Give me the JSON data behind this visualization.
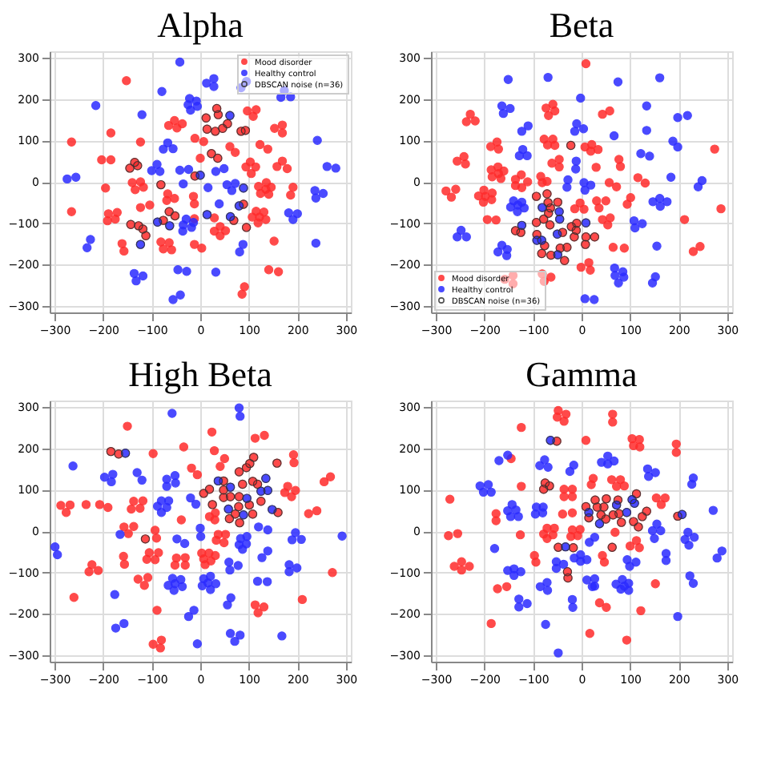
{
  "chart_data": [
    {
      "type": "scatter",
      "title": "Alpha",
      "xlim": [
        -310,
        310
      ],
      "ylim": [
        -315,
        315
      ],
      "xticks": [
        -300,
        -200,
        -100,
        0,
        100,
        200,
        300
      ],
      "yticks": [
        -300,
        -200,
        -100,
        0,
        100,
        200,
        300
      ],
      "grid": true,
      "legend": "top right",
      "marker": "circle",
      "series": [
        {
          "name": "Mood disorder",
          "color": "#ff2b2b",
          "x": [
            -152,
            -265,
            -184,
            -203,
            -184,
            -195,
            -265,
            -189,
            -191,
            -171,
            -175,
            -161,
            -157,
            -123,
            -140,
            -134,
            -123,
            -117,
            -123,
            -104,
            -135,
            -129,
            -145,
            -81,
            -67,
            -69,
            -53,
            -64,
            -52,
            -76,
            -143,
            -127,
            -118,
            -112,
            -81,
            -76,
            -64,
            -59,
            -65,
            -53,
            -48,
            -37,
            -11,
            0,
            -11,
            -14,
            -12,
            -12,
            -12,
            3,
            12,
            14,
            7,
            23,
            36,
            34,
            37,
            46,
            56,
            31,
            61,
            72,
            84,
            93,
            97,
            109,
            115,
            123,
            139,
            94,
            103,
            114,
            105,
            120,
            124,
            136,
            135,
            146,
            141,
            89,
            69,
            95,
            107,
            122,
            115,
            131,
            135,
            119,
            29,
            29,
            41,
            41,
            52,
            152,
            161,
            141,
            153,
            169,
            169,
            158,
            169,
            179,
            191,
            186,
            91,
            86
          ],
          "values": [
            244,
            96,
            118,
            53,
            53,
            -15,
            -72,
            -77,
            -94,
            -74,
            -90,
            -149,
            -167,
            96,
            -2,
            -19,
            0,
            -13,
            -62,
            -56,
            47,
            39,
            33,
            -7,
            -29,
            -45,
            -40,
            -72,
            -82,
            -93,
            -103,
            -106,
            -114,
            -130,
            -145,
            -162,
            -147,
            -164,
            136,
            148,
            130,
            140,
            105,
            57,
            14,
            -35,
            -53,
            -89,
            -151,
            -160,
            154,
            127,
            97,
            68,
            57,
            177,
            162,
            129,
            140,
            122,
            85,
            71,
            122,
            124,
            171,
            158,
            174,
            90,
            79,
            36,
            48,
            36,
            20,
            -11,
            -28,
            -2,
            -18,
            -13,
            -30,
            -54,
            -93,
            -110,
            -85,
            -85,
            -71,
            -73,
            -91,
            -99,
            -87,
            -119,
            -108,
            -130,
            -118,
            -143,
            -217,
            -212,
            129,
            137,
            118,
            37,
            50,
            32,
            -13,
            -32,
            -253,
            -271
          ]
        },
        {
          "name": "Healthy control",
          "color": "#2b2bff",
          "x": [
            -274,
            -256,
            -215,
            -233,
            -226,
            -120,
            -79,
            -42,
            -136,
            -132,
            -118,
            -88,
            -63,
            -123,
            -89,
            -83,
            -100,
            -76,
            -67,
            -56,
            -42,
            -35,
            -24,
            -29,
            -35,
            -36,
            -18,
            -14,
            -25,
            -22,
            -20,
            -8,
            -6,
            0,
            16,
            14,
            -46,
            -28,
            -56,
            -41,
            32,
            13,
            28,
            28,
            32,
            49,
            55,
            65,
            72,
            39,
            61,
            89,
            80,
            62,
            84,
            95,
            88,
            81,
            166,
            173,
            186,
            241,
            261,
            279,
            236,
            238,
            253,
            182,
            200,
            191,
            238
          ],
          "values": [
            7,
            11,
            184,
            -159,
            -139,
            162,
            218,
            289,
            -221,
            -239,
            -227,
            -97,
            -106,
            -151,
            42,
            25,
            27,
            79,
            94,
            80,
            28,
            -5,
            30,
            -90,
            -104,
            -119,
            -110,
            -98,
            186,
            201,
            173,
            195,
            182,
            16,
            -14,
            -79,
            -212,
            -216,
            -284,
            -273,
            -218,
            238,
            249,
            230,
            25,
            32,
            -7,
            -21,
            -4,
            -53,
            160,
            -15,
            -58,
            -84,
            227,
            242,
            -151,
            -169,
            204,
            220,
            205,
            100,
            37,
            33,
            -21,
            -39,
            -28,
            -75,
            -77,
            -91,
            -148
          ]
        },
        {
          "name": "DBSCAN noise (n=36)",
          "color": "#333333",
          "x": [
            -135,
            -129,
            -145,
            -81,
            -64,
            -52,
            -76,
            -143,
            -127,
            -118,
            -112,
            -11,
            12,
            14,
            23,
            36,
            34,
            37,
            46,
            56,
            31,
            84,
            93,
            89,
            69,
            95,
            -88,
            -63,
            -123,
            0,
            14,
            61,
            89,
            80,
            62
          ],
          "values": [
            47,
            39,
            33,
            -7,
            -72,
            -82,
            -93,
            -103,
            -106,
            -114,
            -130,
            14,
            154,
            127,
            68,
            57,
            177,
            162,
            129,
            140,
            122,
            122,
            124,
            -54,
            -93,
            -110,
            -97,
            -106,
            -151,
            16,
            -79,
            160,
            -15,
            -58,
            -84
          ]
        }
      ]
    },
    {
      "type": "scatter",
      "title": "Beta",
      "xlim": [
        -310,
        310
      ],
      "ylim": [
        -315,
        315
      ],
      "xticks": [
        -300,
        -200,
        -100,
        0,
        100,
        200,
        300
      ],
      "yticks": [
        -300,
        -200,
        -100,
        0,
        100,
        200,
        300
      ],
      "grid": true,
      "legend": "bottom left",
      "marker": "circle",
      "series": [
        {
          "name": "Mood disorder",
          "color": "#ff2b2b",
          "x": [
            9,
            -229,
            -237,
            -219,
            -242,
            -239,
            -256,
            -279,
            -268,
            -259,
            -174,
            -187,
            -171,
            -186,
            -172,
            -160,
            -171,
            -184,
            -166,
            -212,
            -201,
            -198,
            -202,
            -184,
            -185,
            -194,
            -176,
            -136,
            -124,
            -123,
            -136,
            -111,
            -136,
            -125,
            -73,
            -59,
            -68,
            -55,
            -77,
            -70,
            -59,
            -55,
            -46,
            -46,
            -61,
            -84,
            -81,
            -71,
            -22,
            21,
            34,
            7,
            19,
            30,
            43,
            58,
            77,
            80,
            72,
            57,
            131,
            116,
            101,
            94,
            59,
            54,
            43,
            50,
            31,
            36,
            -3,
            5,
            -14,
            -93,
            -71,
            -69,
            -49,
            -64,
            -68,
            -78,
            -93,
            -65,
            -92,
            -76,
            -82,
            -63,
            -44,
            -30,
            -35,
            -39,
            -21,
            -10,
            -11,
            -15,
            9,
            27,
            8,
            -1,
            15,
            18,
            -81,
            -77,
            -63,
            -158,
            -141,
            -141,
            65,
            88,
            212,
            230,
            244,
            274,
            287
          ],
          "values": [
            285,
            163,
            145,
            147,
            61,
            43,
            50,
            -22,
            -37,
            -18,
            96,
            85,
            79,
            29,
            36,
            26,
            20,
            12,
            8,
            -34,
            -20,
            -35,
            -49,
            -27,
            -43,
            -91,
            -92,
            6,
            17,
            -14,
            -9,
            0,
            -118,
            -122,
            178,
            187,
            160,
            171,
            103,
            89,
            103,
            88,
            54,
            36,
            45,
            13,
            -2,
            1,
            88,
            90,
            78,
            84,
            74,
            35,
            163,
            171,
            54,
            37,
            -12,
            -2,
            -3,
            10,
            -38,
            -54,
            -87,
            -104,
            -91,
            -46,
            -46,
            -63,
            -51,
            -66,
            -65,
            -35,
            -29,
            -50,
            -49,
            -63,
            -76,
            -90,
            -98,
            -104,
            -127,
            -154,
            -173,
            -177,
            -160,
            -158,
            -190,
            -122,
            -108,
            -100,
            -117,
            -133,
            -133,
            -133,
            -151,
            -206,
            -195,
            -213,
            -222,
            -240,
            -230,
            -235,
            -226,
            -246,
            -158,
            -160,
            -91,
            -168,
            -156,
            79,
            -65
          ]
        },
        {
          "name": "Healthy control",
          "color": "#2b2bff",
          "x": [
            -151,
            -69,
            75,
            161,
            -164,
            -161,
            -147,
            -123,
            -110,
            -121,
            -128,
            -112,
            -2,
            -10,
            -14,
            4,
            -11,
            -12,
            -28,
            -30,
            5,
            7,
            19,
            -140,
            -146,
            -131,
            -123,
            -132,
            -118,
            -248,
            -256,
            -237,
            -164,
            -153,
            -172,
            -154,
            -123,
            -92,
            -82,
            -81,
            -46,
            -45,
            -50,
            -49,
            9,
            67,
            122,
            134,
            134,
            140,
            108,
            110,
            125,
            147,
            161,
            176,
            162,
            155,
            184,
            188,
            198,
            198,
            218,
            240,
            248,
            68,
            69,
            85,
            87,
            76,
            146,
            152,
            7,
            26
          ],
          "values": [
            247,
            252,
            241,
            251,
            183,
            165,
            177,
            122,
            135,
            78,
            63,
            63,
            202,
            140,
            122,
            128,
            50,
            31,
            5,
            -13,
            -2,
            -20,
            -8,
            -46,
            -61,
            -56,
            -49,
            -72,
            -63,
            -117,
            -133,
            -133,
            -153,
            -163,
            -169,
            -178,
            -105,
            -141,
            -141,
            -62,
            -72,
            -90,
            -126,
            -176,
            -99,
            111,
            68,
            124,
            183,
            62,
            -94,
            -111,
            -101,
            -48,
            -40,
            -48,
            -59,
            -155,
            11,
            98,
            84,
            155,
            160,
            -12,
            3,
            -208,
            -226,
            -217,
            -230,
            -244,
            -244,
            -229,
            -282,
            -284
          ]
        },
        {
          "name": "DBSCAN noise (n=36)",
          "color": "#333333",
          "x": [
            -136,
            -125,
            -22,
            -93,
            -71,
            -69,
            -49,
            -64,
            -68,
            -78,
            -93,
            -65,
            -92,
            -76,
            -82,
            -63,
            -44,
            -30,
            -35,
            -39,
            -21,
            -10,
            -11,
            -15,
            9,
            27,
            8,
            -123,
            -92,
            -82,
            -81,
            -46,
            -45,
            -50,
            -49,
            9
          ],
          "values": [
            -118,
            -122,
            88,
            -35,
            -29,
            -50,
            -49,
            -63,
            -76,
            -90,
            -98,
            -104,
            -127,
            -154,
            -173,
            -177,
            -160,
            -158,
            -190,
            -122,
            -108,
            -100,
            -117,
            -133,
            -133,
            -133,
            -151,
            -105,
            -141,
            -141,
            -62,
            -72,
            -90,
            -126,
            -176,
            -99
          ]
        }
      ]
    },
    {
      "type": "scatter",
      "title": "High Beta",
      "xlim": [
        -310,
        310
      ],
      "ylim": [
        -315,
        315
      ],
      "xticks": [
        -300,
        -200,
        -100,
        0,
        100,
        200,
        300
      ],
      "yticks": [
        -300,
        -200,
        -100,
        0,
        100,
        200,
        300
      ],
      "grid": true,
      "legend": "top right",
      "marker": "circle",
      "series": [
        {
          "name": "Mood disorder",
          "color": "#ff2b2b",
          "x": [
            -150,
            24,
            132,
            113,
            -34,
            -97,
            -184,
            -168,
            -287,
            -276,
            -268,
            -235,
            -207,
            -190,
            -137,
            -118,
            -142,
            -124,
            -137,
            -148,
            -157,
            -93,
            -90,
            -86,
            -105,
            -93,
            -110,
            -128,
            -108,
            -115,
            -158,
            -156,
            -223,
            -229,
            -210,
            -260,
            -89,
            -97,
            -80,
            -82,
            -113,
            -39,
            -49,
            -52,
            -31,
            -31,
            -18,
            -6,
            3,
            7,
            10,
            18,
            22,
            31,
            33,
            37,
            52,
            49,
            19,
            30,
            31,
            29,
            41,
            50,
            7,
            19,
            25,
            48,
            48,
            48,
            60,
            72,
            62,
            80,
            79,
            81,
            80,
            87,
            95,
            102,
            110,
            108,
            118,
            125,
            101,
            108,
            158,
            160,
            113,
            119,
            131,
            174,
            180,
            188,
            196,
            192,
            193,
            223,
            240,
            255,
            268,
            272,
            210
          ],
          "values": [
            253,
            239,
            231,
            224,
            203,
            187,
            192,
            186,
            62,
            45,
            63,
            64,
            64,
            57,
            72,
            73,
            53,
            55,
            11,
            -6,
            10,
            2,
            -17,
            -52,
            -52,
            -69,
            -68,
            -116,
            -112,
            -131,
            -61,
            -80,
            -81,
            -98,
            -95,
            -160,
            -191,
            -273,
            -263,
            -282,
            -19,
            27,
            -65,
            -82,
            -64,
            -82,
            152,
            136,
            -53,
            -67,
            -81,
            -53,
            -72,
            -59,
            -22,
            -8,
            -8,
            -28,
            35,
            27,
            44,
            194,
            156,
            175,
            91,
            101,
            64,
            121,
            99,
            81,
            30,
            41,
            83,
            83,
            59,
            20,
            143,
            113,
            153,
            163,
            178,
            120,
            113,
            72,
            63,
            41,
            164,
            45,
            -178,
            -197,
            -183,
            93,
            108,
            83,
            98,
            184,
            165,
            42,
            49,
            119,
            131,
            -100,
            -165
          ]
        },
        {
          "name": "Healthy control",
          "color": "#2b2bff",
          "x": [
            -58,
            80,
            82,
            -262,
            -154,
            -197,
            -180,
            -183,
            -130,
            -120,
            -69,
            -69,
            -52,
            -51,
            -88,
            -80,
            -65,
            -80,
            -69,
            -20,
            -9,
            -299,
            -294,
            -165,
            -48,
            -32,
            -176,
            -174,
            -157,
            -66,
            -57,
            -52,
            -54,
            -40,
            -37,
            -24,
            -13,
            -6,
            0,
            1,
            7,
            4,
            16,
            21,
            21,
            32,
            56,
            63,
            59,
            61,
            78,
            62,
            71,
            82,
            37,
            62,
            58,
            89,
            96,
            125,
            135,
            139,
            148,
            83,
            80,
            96,
            95,
            87,
            120,
            139,
            139,
            127,
            118,
            138,
            168,
            189,
            196,
            208,
            183,
            183,
            199,
            292
          ],
          "values": [
            284,
            297,
            277,
            157,
            188,
            130,
            137,
            119,
            141,
            123,
            125,
            108,
            134,
            116,
            60,
            73,
            73,
            45,
            57,
            80,
            65,
            -38,
            -57,
            -8,
            -19,
            -30,
            -153,
            -234,
            -223,
            -131,
            -114,
            -127,
            -143,
            -117,
            -134,
            -206,
            -191,
            -272,
            7,
            -13,
            -115,
            -132,
            -125,
            -109,
            -141,
            -127,
            -178,
            -161,
            -75,
            -94,
            -83,
            -247,
            -266,
            -251,
            121,
            106,
            53,
            39,
            79,
            96,
            127,
            98,
            52,
            -18,
            -33,
            -13,
            -31,
            -44,
            10,
            3,
            -48,
            -64,
            -121,
            -122,
            -253,
            -21,
            -4,
            -20,
            -98,
            -81,
            -89,
            -12
          ]
        },
        {
          "name": "DBSCAN noise (n=36)",
          "color": "#333333",
          "x": [
            -184,
            -168,
            -113,
            7,
            19,
            25,
            48,
            48,
            48,
            60,
            72,
            62,
            80,
            79,
            81,
            80,
            87,
            95,
            102,
            110,
            108,
            118,
            125,
            101,
            108,
            158,
            160,
            -154,
            37,
            62,
            58,
            89,
            96,
            125,
            135,
            139,
            148
          ],
          "values": [
            192,
            186,
            -19,
            91,
            101,
            64,
            121,
            99,
            81,
            30,
            41,
            83,
            83,
            59,
            20,
            143,
            113,
            153,
            163,
            178,
            120,
            113,
            72,
            63,
            41,
            164,
            45,
            188,
            121,
            106,
            53,
            39,
            79,
            96,
            127,
            98,
            52
          ]
        }
      ]
    },
    {
      "type": "scatter",
      "title": "Gamma",
      "xlim": [
        -310,
        310
      ],
      "ylim": [
        -315,
        315
      ],
      "xticks": [
        -300,
        -200,
        -100,
        0,
        100,
        200,
        300
      ],
      "yticks": [
        -300,
        -200,
        -100,
        0,
        100,
        200,
        300
      ],
      "grid": true,
      "legend": "top right",
      "marker": "circle",
      "series": [
        {
          "name": "Mood disorder",
          "color": "#ff2b2b",
          "x": [
            -48,
            -50,
            -32,
            -36,
            -124,
            -145,
            -124,
            -126,
            -271,
            -274,
            -255,
            -262,
            -247,
            -247,
            -231,
            -176,
            -176,
            -173,
            -154,
            -186,
            -97,
            -94,
            -78,
            -75,
            -66,
            -51,
            -36,
            -19,
            -36,
            -19,
            -39,
            -19,
            -19,
            -3,
            -8,
            -22,
            -78,
            -71,
            -71,
            -59,
            -56,
            -48,
            -17,
            -29,
            -28,
            9,
            20,
            24,
            64,
            64,
            62,
            72,
            80,
            88,
            104,
            119,
            107,
            120,
            195,
            195,
            154,
            172,
            164,
            69,
            9,
            28,
            15,
            32,
            40,
            46,
            51,
            50,
            65,
            75,
            77,
            82,
            107,
            117,
            113,
            125,
            134,
            198,
            63,
            47,
            43,
            100,
            113,
            119,
            37,
            51,
            17,
            93,
            122,
            152
          ],
          "values": [
            291,
            275,
            282,
            265,
            250,
            175,
            108,
            -9,
            77,
            -11,
            -6,
            -85,
            -74,
            -94,
            -85,
            42,
            25,
            -139,
            -134,
            -223,
            -59,
            -75,
            101,
            116,
            109,
            217,
            101,
            101,
            83,
            83,
            41,
            44,
            3,
            4,
            -11,
            -13,
            -7,
            7,
            -18,
            -9,
            7,
            -39,
            -40,
            -98,
            -113,
            219,
            112,
            127,
            282,
            263,
            124,
            108,
            124,
            109,
            223,
            221,
            206,
            203,
            210,
            190,
            80,
            80,
            64,
            -3,
            59,
            75,
            32,
            58,
            39,
            58,
            78,
            29,
            39,
            75,
            42,
            21,
            23,
            10,
            90,
            35,
            48,
            36,
            -39,
            -75,
            -59,
            -36,
            -23,
            -40,
            -173,
            -184,
            -247,
            -263,
            -192,
            -127
          ]
        },
        {
          "name": "Healthy control",
          "color": "#2b2bff",
          "x": [
            -152,
            -170,
            -209,
            -202,
            -192,
            -186,
            -143,
            -152,
            -135,
            -146,
            -130,
            -179,
            -152,
            -139,
            -139,
            -125,
            -129,
            -129,
            -112,
            -93,
            -95,
            -79,
            -80,
            -86,
            -76,
            -69,
            -64,
            -24,
            -16,
            -52,
            -37,
            -52,
            -33,
            -85,
            -71,
            -70,
            -74,
            -19,
            -18,
            -48,
            -15,
            -2,
            -2,
            11,
            16,
            27,
            11,
            22,
            27,
            27,
            41,
            54,
            54,
            67,
            15,
            37,
            72,
            93,
            104,
            109,
            71,
            81,
            84,
            88,
            97,
            97,
            94,
            99,
            112,
            136,
            138,
            152,
            146,
            155,
            163,
            150,
            174,
            174,
            198,
            207,
            219,
            213,
            221,
            232,
            223,
            230,
            227,
            230,
            271,
            279,
            289
          ],
          "values": [
            183,
            170,
            109,
            94,
            112,
            94,
            64,
            49,
            51,
            35,
            35,
            -42,
            -95,
            -91,
            -107,
            -98,
            -164,
            -183,
            -175,
            58,
            41,
            58,
            44,
            158,
            172,
            154,
            219,
            144,
            159,
            -74,
            -80,
            -90,
            -38,
            -134,
            -124,
            -143,
            -225,
            -165,
            -184,
            -294,
            -65,
            -73,
            -57,
            -69,
            -27,
            -15,
            -118,
            -134,
            -115,
            -133,
            166,
            181,
            162,
            169,
            45,
            18,
            63,
            45,
            76,
            67,
            -128,
            -140,
            -117,
            -133,
            -143,
            -126,
            -69,
            -85,
            -75,
            150,
            132,
            141,
            1,
            17,
            1,
            -18,
            -54,
            -71,
            -206,
            40,
            -3,
            -20,
            -34,
            -15,
            -108,
            -126,
            113,
            128,
            50,
            -65,
            -48
          ]
        },
        {
          "name": "DBSCAN noise (n=36)",
          "color": "#333333",
          "x": [
            -78,
            -75,
            -66,
            -51,
            -48,
            -17,
            -29,
            -28,
            9,
            28,
            15,
            32,
            40,
            46,
            51,
            50,
            65,
            75,
            77,
            82,
            107,
            117,
            113,
            125,
            134,
            198,
            63,
            -64,
            -33,
            15,
            37,
            72,
            93,
            104,
            109,
            207
          ],
          "values": [
            101,
            116,
            109,
            217,
            -39,
            -40,
            -98,
            -113,
            59,
            75,
            32,
            58,
            39,
            58,
            78,
            29,
            39,
            75,
            42,
            21,
            23,
            10,
            90,
            35,
            48,
            36,
            -39,
            219,
            -38,
            45,
            18,
            63,
            45,
            76,
            67,
            40
          ]
        }
      ]
    }
  ]
}
